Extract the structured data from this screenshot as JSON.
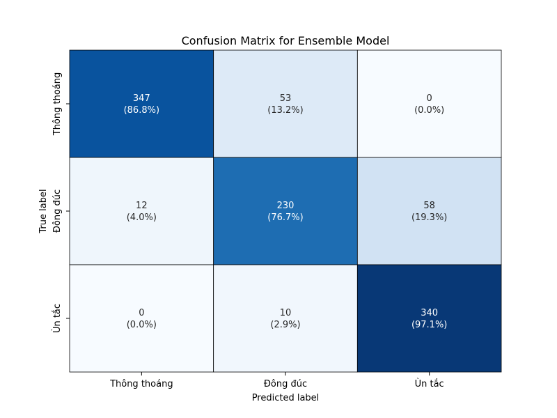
{
  "chart_data": {
    "type": "heatmap",
    "title": "Confusion Matrix for Ensemble Model",
    "xlabel": "Predicted label",
    "ylabel": "True label",
    "x_categories": [
      "Thông thoáng",
      "Đông đúc",
      "Ùn tắc"
    ],
    "y_categories": [
      "Thông thoáng",
      "Đông đúc",
      "Ùn tắc"
    ],
    "values": [
      [
        347,
        53,
        0
      ],
      [
        12,
        230,
        58
      ],
      [
        0,
        10,
        340
      ]
    ],
    "percent_labels": [
      [
        "(86.8%)",
        "(13.2%)",
        "(0.0%)"
      ],
      [
        "(4.0%)",
        "(76.7%)",
        "(19.3%)"
      ],
      [
        "(0.0%)",
        "(2.9%)",
        "(97.1%)"
      ]
    ],
    "colormap": "Blues",
    "color_range": [
      0,
      1
    ],
    "colorbar": false
  }
}
